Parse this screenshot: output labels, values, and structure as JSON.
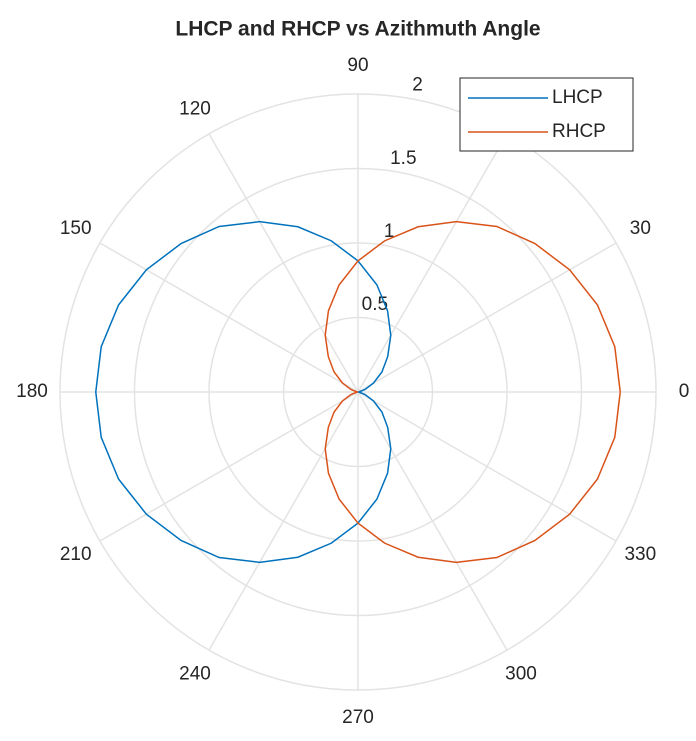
{
  "chart_data": {
    "type": "polar",
    "title": "LHCP and RHCP vs Azithmuth Angle",
    "x": [
      0,
      10,
      20,
      30,
      40,
      50,
      60,
      70,
      80,
      90,
      100,
      110,
      120,
      130,
      140,
      150,
      160,
      170,
      180,
      190,
      200,
      210,
      220,
      230,
      240,
      250,
      260,
      270,
      280,
      290,
      300,
      310,
      320,
      330,
      340,
      350,
      360
    ],
    "series": [
      {
        "name": "LHCP",
        "color": "#0072BD",
        "values": [
          0,
          0.01,
          0.05,
          0.12,
          0.21,
          0.31,
          0.44,
          0.58,
          0.73,
          0.88,
          1.03,
          1.18,
          1.32,
          1.45,
          1.55,
          1.64,
          1.71,
          1.75,
          1.76,
          1.75,
          1.71,
          1.64,
          1.55,
          1.45,
          1.32,
          1.18,
          1.03,
          0.88,
          0.73,
          0.58,
          0.44,
          0.31,
          0.21,
          0.12,
          0.05,
          0.01,
          0
        ]
      },
      {
        "name": "RHCP",
        "color": "#D95319",
        "values": [
          1.76,
          1.75,
          1.71,
          1.64,
          1.55,
          1.45,
          1.32,
          1.18,
          1.03,
          0.88,
          0.73,
          0.58,
          0.44,
          0.31,
          0.21,
          0.12,
          0.05,
          0.01,
          0,
          0.01,
          0.05,
          0.12,
          0.21,
          0.31,
          0.44,
          0.58,
          0.73,
          0.88,
          1.03,
          1.18,
          1.32,
          1.45,
          1.55,
          1.64,
          1.71,
          1.75,
          1.76
        ]
      }
    ],
    "rlim": [
      0,
      2
    ],
    "rticks": [
      0.5,
      1,
      1.5,
      2
    ],
    "thetaticks": [
      0,
      30,
      60,
      90,
      120,
      150,
      180,
      210,
      240,
      270,
      300,
      330
    ],
    "grid": true,
    "legend": "upper right"
  }
}
